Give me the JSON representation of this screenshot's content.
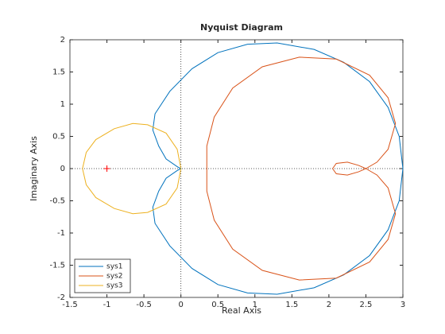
{
  "chart_data": {
    "type": "line",
    "title": "Nyquist Diagram",
    "x_label": "Real Axis",
    "y_label": "Imaginary Axis",
    "xlim": [
      -1.5,
      3
    ],
    "ylim": [
      -2,
      2
    ],
    "xticks": [
      -1.5,
      -1,
      -0.5,
      0,
      0.5,
      1,
      1.5,
      2,
      2.5,
      3
    ],
    "yticks": [
      -2,
      -1.5,
      -1,
      -0.5,
      0,
      0.5,
      1,
      1.5,
      2
    ],
    "grid": false,
    "legend": "lower-left",
    "series": [
      {
        "name": "sys1",
        "color": "#0072bd",
        "x": [
          3,
          2.95,
          2.8,
          2.55,
          2.2,
          1.8,
          1.3,
          0.9,
          0.5,
          0.15,
          -0.15,
          -0.35,
          -0.38,
          -0.3,
          -0.2,
          -0.05,
          0,
          -0.05,
          -0.2,
          -0.3,
          -0.38,
          -0.35,
          -0.15,
          0.15,
          0.5,
          0.9,
          1.3,
          1.8,
          2.2,
          2.55,
          2.8,
          2.95,
          3
        ],
        "values": [
          0,
          0.5,
          0.95,
          1.35,
          1.65,
          1.85,
          1.95,
          1.93,
          1.8,
          1.55,
          1.2,
          0.85,
          0.6,
          0.35,
          0.15,
          0.03,
          0,
          -0.03,
          -0.15,
          -0.35,
          -0.6,
          -0.85,
          -1.2,
          -1.55,
          -1.8,
          -1.93,
          -1.95,
          -1.85,
          -1.65,
          -1.35,
          -0.95,
          -0.5,
          0
        ]
      },
      {
        "name": "sys2",
        "color": "#d95319",
        "x": [
          2.05,
          2.1,
          2.25,
          2.4,
          2.5,
          2.65,
          2.8,
          2.9,
          2.8,
          2.55,
          2.1,
          1.6,
          1.1,
          0.7,
          0.45,
          0.35,
          0.35,
          0.35,
          0.45,
          0.7,
          1.1,
          1.6,
          2.1,
          2.55,
          2.8,
          2.9,
          2.8,
          2.65,
          2.5,
          2.4,
          2.25,
          2.1,
          2.05
        ],
        "values": [
          0,
          0.08,
          0.1,
          0.05,
          0,
          0.1,
          0.3,
          0.7,
          1.1,
          1.45,
          1.7,
          1.73,
          1.58,
          1.25,
          0.8,
          0.35,
          0,
          -0.35,
          -0.8,
          -1.25,
          -1.58,
          -1.73,
          -1.7,
          -1.45,
          -1.1,
          -0.7,
          -0.3,
          -0.1,
          0,
          -0.05,
          -0.1,
          -0.08,
          0
        ]
      },
      {
        "name": "sys3",
        "color": "#edb120",
        "x": [
          0,
          -0.05,
          -0.2,
          -0.45,
          -0.65,
          -0.9,
          -1.15,
          -1.28,
          -1.33,
          -1.28,
          -1.15,
          -0.9,
          -0.65,
          -0.45,
          -0.2,
          -0.05,
          0
        ],
        "values": [
          0,
          0.3,
          0.55,
          0.68,
          0.7,
          0.62,
          0.45,
          0.25,
          0,
          -0.25,
          -0.45,
          -0.62,
          -0.7,
          -0.68,
          -0.55,
          -0.3,
          0
        ]
      }
    ],
    "critical_point": {
      "x": -1,
      "y": 0,
      "color": "#ff0000"
    }
  }
}
